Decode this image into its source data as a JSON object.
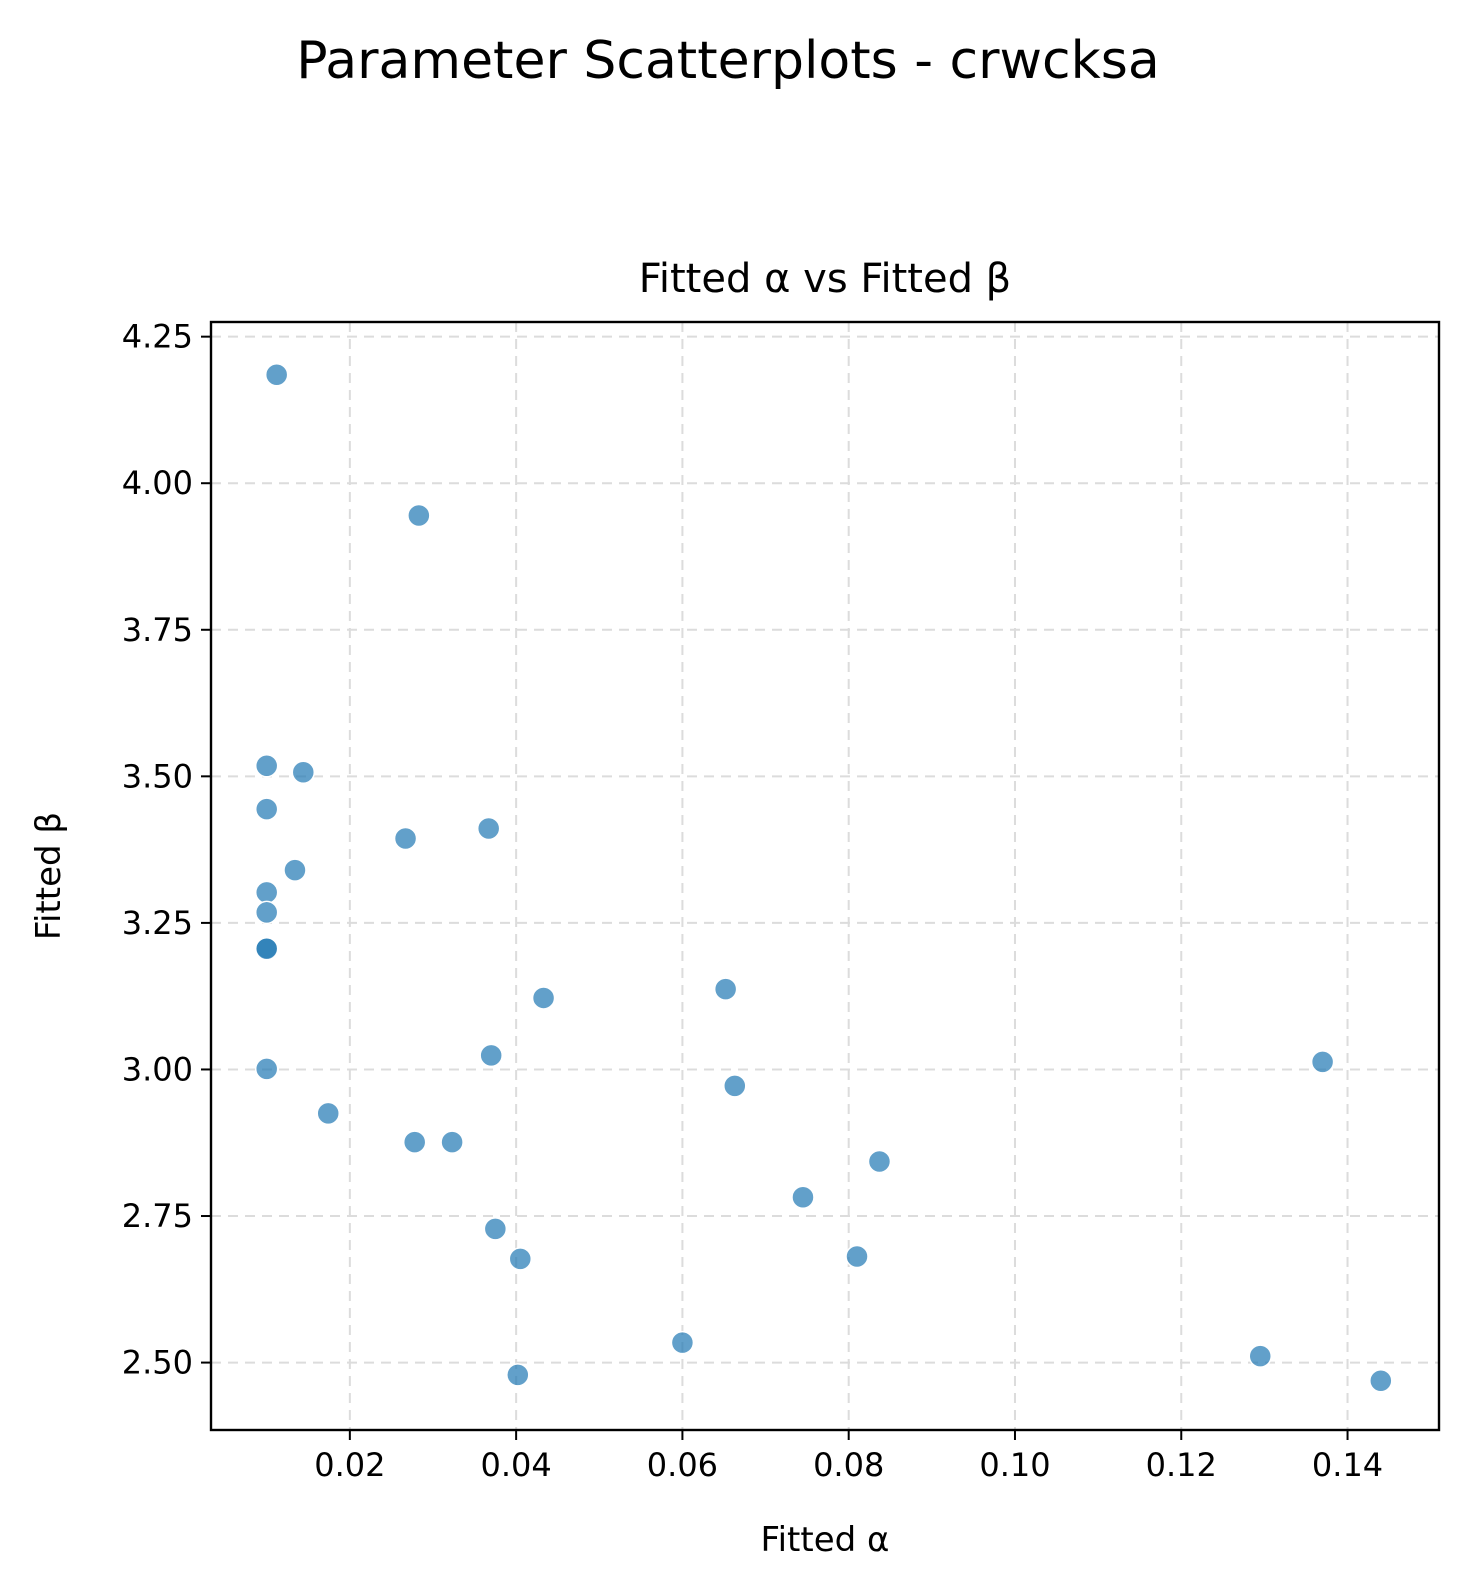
{
  "figure": {
    "suptitle": "Parameter Scatterplots - crwcksa"
  },
  "chart_data": {
    "type": "scatter",
    "title": "Fitted α vs Fitted β",
    "xlabel": "Fitted α",
    "ylabel": "Fitted β",
    "xlim": [
      0.0033,
      0.151
    ],
    "ylim": [
      2.385,
      4.275
    ],
    "xticks": [
      0.02,
      0.04,
      0.06,
      0.08,
      0.1,
      0.12,
      0.14
    ],
    "xtick_labels": [
      "0.02",
      "0.04",
      "0.06",
      "0.08",
      "0.10",
      "0.12",
      "0.14"
    ],
    "yticks": [
      2.5,
      2.75,
      3.0,
      3.25,
      3.5,
      3.75,
      4.0,
      4.25
    ],
    "ytick_labels": [
      "2.50",
      "2.75",
      "3.00",
      "3.25",
      "3.50",
      "3.75",
      "4.00",
      "4.25"
    ],
    "grid": true,
    "marker_color": "#1f77b4",
    "marker_alpha": 0.7,
    "points": [
      {
        "x": 0.0112,
        "y": 4.185
      },
      {
        "x": 0.0283,
        "y": 3.945
      },
      {
        "x": 0.01,
        "y": 3.518
      },
      {
        "x": 0.0144,
        "y": 3.507
      },
      {
        "x": 0.01,
        "y": 3.444
      },
      {
        "x": 0.0267,
        "y": 3.394
      },
      {
        "x": 0.0367,
        "y": 3.411
      },
      {
        "x": 0.0134,
        "y": 3.34
      },
      {
        "x": 0.01,
        "y": 3.302
      },
      {
        "x": 0.01,
        "y": 3.268
      },
      {
        "x": 0.01,
        "y": 3.207
      },
      {
        "x": 0.01,
        "y": 3.206
      },
      {
        "x": 0.0433,
        "y": 3.122
      },
      {
        "x": 0.0652,
        "y": 3.137
      },
      {
        "x": 0.01,
        "y": 3.001
      },
      {
        "x": 0.037,
        "y": 3.024
      },
      {
        "x": 0.0663,
        "y": 2.972
      },
      {
        "x": 0.137,
        "y": 3.013
      },
      {
        "x": 0.0174,
        "y": 2.925
      },
      {
        "x": 0.0278,
        "y": 2.876
      },
      {
        "x": 0.0323,
        "y": 2.876
      },
      {
        "x": 0.0837,
        "y": 2.843
      },
      {
        "x": 0.0745,
        "y": 2.782
      },
      {
        "x": 0.0375,
        "y": 2.728
      },
      {
        "x": 0.0405,
        "y": 2.677
      },
      {
        "x": 0.081,
        "y": 2.681
      },
      {
        "x": 0.06,
        "y": 2.534
      },
      {
        "x": 0.1295,
        "y": 2.511
      },
      {
        "x": 0.0402,
        "y": 2.479
      },
      {
        "x": 0.144,
        "y": 2.469
      }
    ]
  }
}
